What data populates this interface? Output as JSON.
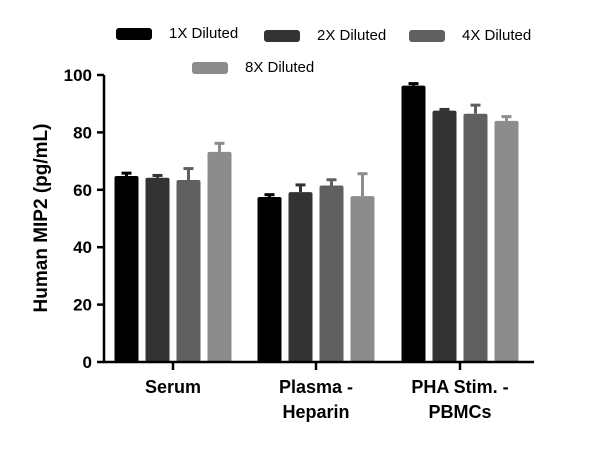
{
  "chart_data": {
    "type": "bar",
    "title": "",
    "xlabel": "",
    "ylabel": "Human MIP2 (pg/mL)",
    "ylim": [
      0,
      100
    ],
    "yticks": [
      0,
      20,
      40,
      60,
      80,
      100
    ],
    "ytick_labels": [
      "0",
      "20",
      "40",
      "60",
      "80",
      "100"
    ],
    "categories": [
      {
        "line1": "Serum",
        "line2": ""
      },
      {
        "line1": "Plasma -",
        "line2": "Heparin"
      },
      {
        "line1": "PHA Stim.  -",
        "line2": "PBMCs"
      }
    ],
    "series": [
      {
        "name": "1X Diluted",
        "color": "#000000",
        "values": [
          64.8,
          57.5,
          96.3
        ],
        "errors": [
          1.0,
          0.8,
          0.7
        ]
      },
      {
        "name": "2X Diluted",
        "color": "#333333",
        "values": [
          64.2,
          59.2,
          87.6
        ],
        "errors": [
          0.8,
          2.5,
          0.4
        ]
      },
      {
        "name": "4X Diluted",
        "color": "#606060",
        "values": [
          63.4,
          61.5,
          86.5
        ],
        "errors": [
          4.0,
          2.0,
          3.0
        ]
      },
      {
        "name": "8X Diluted",
        "color": "#8c8c8c",
        "values": [
          73.2,
          57.8,
          84.0
        ],
        "errors": [
          3.0,
          7.8,
          1.5
        ]
      }
    ]
  }
}
